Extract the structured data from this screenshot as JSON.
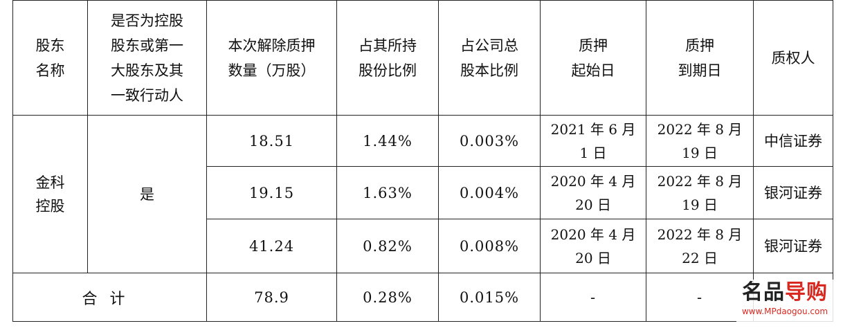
{
  "headers": {
    "shareholder_name": [
      "股东",
      "名称"
    ],
    "is_controlling": [
      "是否为控股",
      "股东或第一",
      "大股东及其",
      "一致行动人"
    ],
    "release_quantity": [
      "本次解除质押",
      "数量（万股）"
    ],
    "pct_of_holdings": [
      "占其所持",
      "股份比例"
    ],
    "pct_of_total": [
      "占公司总",
      "股本比例"
    ],
    "pledge_start": [
      "质押",
      "起始日"
    ],
    "pledge_end": [
      "质押",
      "到期日"
    ],
    "pledgee": "质权人"
  },
  "group": {
    "shareholder": [
      "金科",
      "控股"
    ],
    "is_controlling": "是"
  },
  "rows": [
    {
      "quantity": "18.51",
      "pct_holdings": "1.44%",
      "pct_total": "0.003%",
      "start": [
        "2021 年 6 月",
        "1 日"
      ],
      "end": [
        "2022 年 8 月",
        "19 日"
      ],
      "pledgee": "中信证券"
    },
    {
      "quantity": "19.15",
      "pct_holdings": "1.63%",
      "pct_total": "0.004%",
      "start": [
        "2020 年 4 月",
        "20 日"
      ],
      "end": [
        "2022 年 8 月",
        "19 日"
      ],
      "pledgee": "银河证券"
    },
    {
      "quantity": "41.24",
      "pct_holdings": "0.82%",
      "pct_total": "0.008%",
      "start": [
        "2020 年 4 月",
        "20 日"
      ],
      "end": [
        "2022 年 8 月",
        "22 日"
      ],
      "pledgee": "银河证券"
    }
  ],
  "total": {
    "label": "合计",
    "quantity": "78.9",
    "pct_holdings": "0.28%",
    "pct_total": "0.015%",
    "start": "-",
    "end": "-",
    "pledgee": ""
  },
  "watermark": {
    "logo_main": "名品",
    "logo_accent": "导购",
    "url": "www.MPdaogou.com"
  }
}
